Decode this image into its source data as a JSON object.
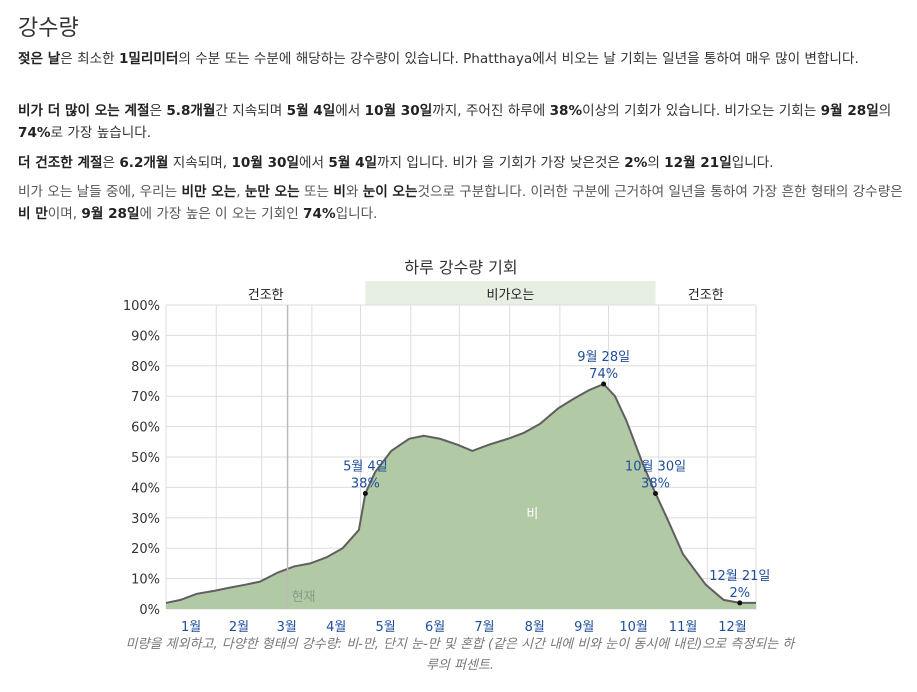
{
  "heading": "강수량",
  "paragraphs": [
    [
      {
        "t": "젖은 날",
        "b": true
      },
      {
        "t": "은 최소한 "
      },
      {
        "t": "1밀리미터",
        "b": true
      },
      {
        "t": "의 수분 또는 수분에 해당하는 강수량이 있습니다. Phatthaya에서 비오는 날 기회는 일년을 통하여 매우 많이 변합니다."
      }
    ],
    [
      {
        "t": "비가 더 많이 오는 계절",
        "b": true
      },
      {
        "t": "은 "
      },
      {
        "t": "5.8개월",
        "b": true
      },
      {
        "t": "간 지속되며 "
      },
      {
        "t": "5월 4일",
        "b": true
      },
      {
        "t": "에서 "
      },
      {
        "t": "10월 30일",
        "b": true
      },
      {
        "t": "까지, 주어진 하루에 "
      },
      {
        "t": "38%",
        "b": true
      },
      {
        "t": "이상의 기회가 있습니다. 비가오는 기회는 "
      },
      {
        "t": "9월 28일",
        "b": true
      },
      {
        "t": "의 "
      },
      {
        "t": "74%",
        "b": true
      },
      {
        "t": "로 가장 높습니다."
      }
    ],
    [
      {
        "t": "더 건조한 계절",
        "b": true
      },
      {
        "t": "은 "
      },
      {
        "t": "6.2개월",
        "b": true
      },
      {
        "t": " 지속되며, "
      },
      {
        "t": "10월 30일",
        "b": true
      },
      {
        "t": "에서 "
      },
      {
        "t": "5월 4일",
        "b": true
      },
      {
        "t": "까지 입니다. 비가 을 기회가 가장 낮은것은 "
      },
      {
        "t": "2%",
        "b": true
      },
      {
        "t": "의 "
      },
      {
        "t": "12월 21일",
        "b": true
      },
      {
        "t": "입니다."
      }
    ],
    [
      {
        "t": "비가 오는 날들 중에, 우리는 "
      },
      {
        "t": "비만 오는",
        "b": true
      },
      {
        "t": ", "
      },
      {
        "t": "눈만 오는",
        "b": true
      },
      {
        "t": " 또는 "
      },
      {
        "t": "비",
        "b": true
      },
      {
        "t": "와 "
      },
      {
        "t": "눈이 오는",
        "b": true
      },
      {
        "t": "것으로 구분합니다. 이러한 구분에 근거하여 일년을 통하여 가장 흔한 형태의 강수량은 "
      },
      {
        "t": "비 만",
        "b": true
      },
      {
        "t": "이며, "
      },
      {
        "t": "9월 28일",
        "b": true
      },
      {
        "t": "에 가장 높은 이 오는 기회인 "
      },
      {
        "t": "74%",
        "b": true
      },
      {
        "t": "입니다."
      }
    ]
  ],
  "caption": "미량을 제외하고, 다양한 형태의 강수량: 비-만, 단지 눈-만 및 혼합 (같은 시간 내에 비와 눈이 동시에 내린)으로 측정되는 하루의 퍼센트.",
  "colors": {
    "area_fill": "#b2c9a6",
    "area_stroke": "#5f5f5f",
    "wet_band": "#e7efe3",
    "grid": "#dddddd",
    "month_label": "#1f4e9b",
    "annotation": "#1f4e9b",
    "series_label": "#ffffff"
  },
  "chart_data": {
    "type": "area",
    "title": "하루 강수량 기회",
    "ylim": [
      0,
      100
    ],
    "y_ticks": [
      "0%",
      "10%",
      "20%",
      "30%",
      "40%",
      "50%",
      "60%",
      "70%",
      "80%",
      "90%",
      "100%"
    ],
    "x_tick_labels": [
      "1월",
      "2월",
      "3월",
      "4월",
      "5월",
      "6월",
      "7월",
      "8월",
      "9월",
      "10월",
      "11월",
      "12월"
    ],
    "x_unit": "day_of_year",
    "season_bands": [
      {
        "label": "건조한",
        "type": "dry"
      },
      {
        "label": "비가오는",
        "type": "wet",
        "start_day": 124,
        "end_day": 303
      },
      {
        "label": "건조한",
        "type": "dry"
      }
    ],
    "current_marker": {
      "label": "현재",
      "day": 76
    },
    "series": [
      {
        "name": "비",
        "points": [
          [
            1,
            2
          ],
          [
            10,
            3
          ],
          [
            20,
            5
          ],
          [
            31,
            6
          ],
          [
            40,
            7
          ],
          [
            50,
            8
          ],
          [
            59,
            9
          ],
          [
            70,
            12
          ],
          [
            80,
            14
          ],
          [
            90,
            15
          ],
          [
            100,
            17
          ],
          [
            110,
            20
          ],
          [
            120,
            26
          ],
          [
            124,
            38
          ],
          [
            130,
            45
          ],
          [
            140,
            52
          ],
          [
            151,
            56
          ],
          [
            160,
            57
          ],
          [
            170,
            56
          ],
          [
            181,
            54
          ],
          [
            190,
            52
          ],
          [
            200,
            54
          ],
          [
            212,
            56
          ],
          [
            222,
            58
          ],
          [
            232,
            61
          ],
          [
            243,
            66
          ],
          [
            252,
            69
          ],
          [
            262,
            72
          ],
          [
            271,
            74
          ],
          [
            278,
            70
          ],
          [
            285,
            62
          ],
          [
            295,
            48
          ],
          [
            303,
            38
          ],
          [
            310,
            30
          ],
          [
            320,
            18
          ],
          [
            334,
            8
          ],
          [
            345,
            3
          ],
          [
            355,
            2
          ],
          [
            365,
            2
          ]
        ]
      }
    ],
    "annotations": [
      {
        "date": "5월 4일",
        "value": "38%",
        "day": 124,
        "pct": 38
      },
      {
        "date": "9월 28일",
        "value": "74%",
        "day": 271,
        "pct": 74
      },
      {
        "date": "10월 30일",
        "value": "38%",
        "day": 303,
        "pct": 38
      },
      {
        "date": "12월 21일",
        "value": "2%",
        "day": 355,
        "pct": 2
      }
    ]
  }
}
